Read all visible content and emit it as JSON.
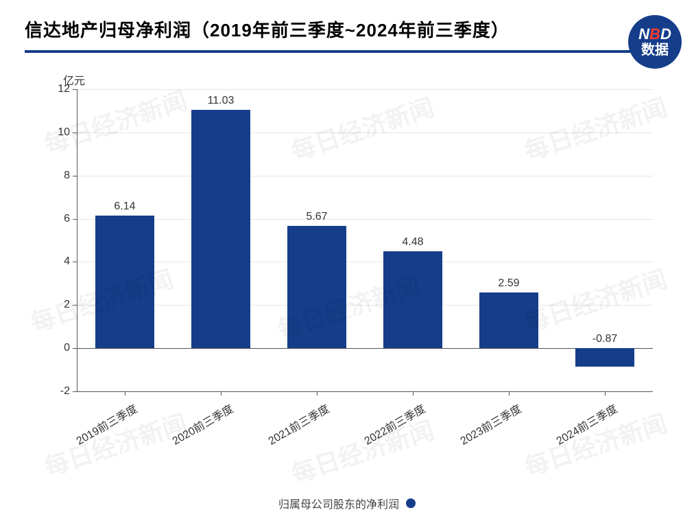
{
  "title": "信达地产归母净利润（2019年前三季度~2024年前三季度）",
  "logo": {
    "n": "N",
    "b": "B",
    "d": "D",
    "sub": "数据"
  },
  "watermark_text": "每日经济新闻",
  "watermark_color": "rgba(0,0,0,0.05)",
  "y_unit": "亿元",
  "legend_label": "归属母公司股东的净利润",
  "chart": {
    "type": "bar",
    "categories": [
      "2019前三季度",
      "2020前三季度",
      "2021前三季度",
      "2022前三季度",
      "2023前三季度",
      "2024前三季度"
    ],
    "values": [
      6.14,
      11.03,
      5.67,
      4.48,
      2.59,
      -0.87
    ],
    "bar_color": "#153d8a",
    "ylim": [
      -2,
      12
    ],
    "ytick_step": 2,
    "bar_width": 0.62,
    "background_color": "#ffffff",
    "grid_color": "#e6e6e6",
    "axis_color": "#555555",
    "title_fontsize": 26,
    "label_fontsize": 16,
    "value_label_fontsize": 16,
    "x_label_rotation": -30,
    "axis_scale": "linear"
  }
}
